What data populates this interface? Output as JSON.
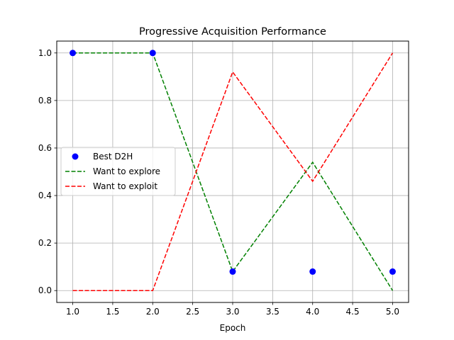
{
  "chart_data": {
    "type": "line",
    "title": "Progressive Acquisition Performance",
    "xlabel": "Epoch",
    "ylabel": "",
    "xlim": [
      0.8,
      5.2
    ],
    "ylim": [
      -0.05,
      1.05
    ],
    "grid": true,
    "legend_placement": "center-left",
    "x_ticks": [
      "1.0",
      "1.5",
      "2.0",
      "2.5",
      "3.0",
      "3.5",
      "4.0",
      "4.5",
      "5.0"
    ],
    "y_ticks": [
      "0.0",
      "0.2",
      "0.4",
      "0.6",
      "0.8",
      "1.0"
    ],
    "x": [
      1,
      2,
      3,
      4,
      5
    ],
    "series": [
      {
        "name": "Best D2H",
        "kind": "scatter",
        "color": "#0000ff",
        "values": [
          1.0,
          1.0,
          0.08,
          0.08,
          0.08
        ]
      },
      {
        "name": "Want to explore",
        "kind": "line",
        "style": "dashed",
        "color": "#008000",
        "values": [
          1.0,
          1.0,
          0.08,
          0.54,
          0.0
        ]
      },
      {
        "name": "Want to exploit",
        "kind": "line",
        "style": "dashed",
        "color": "#ff0000",
        "values": [
          0.0,
          0.0,
          0.92,
          0.46,
          1.0
        ]
      }
    ]
  }
}
